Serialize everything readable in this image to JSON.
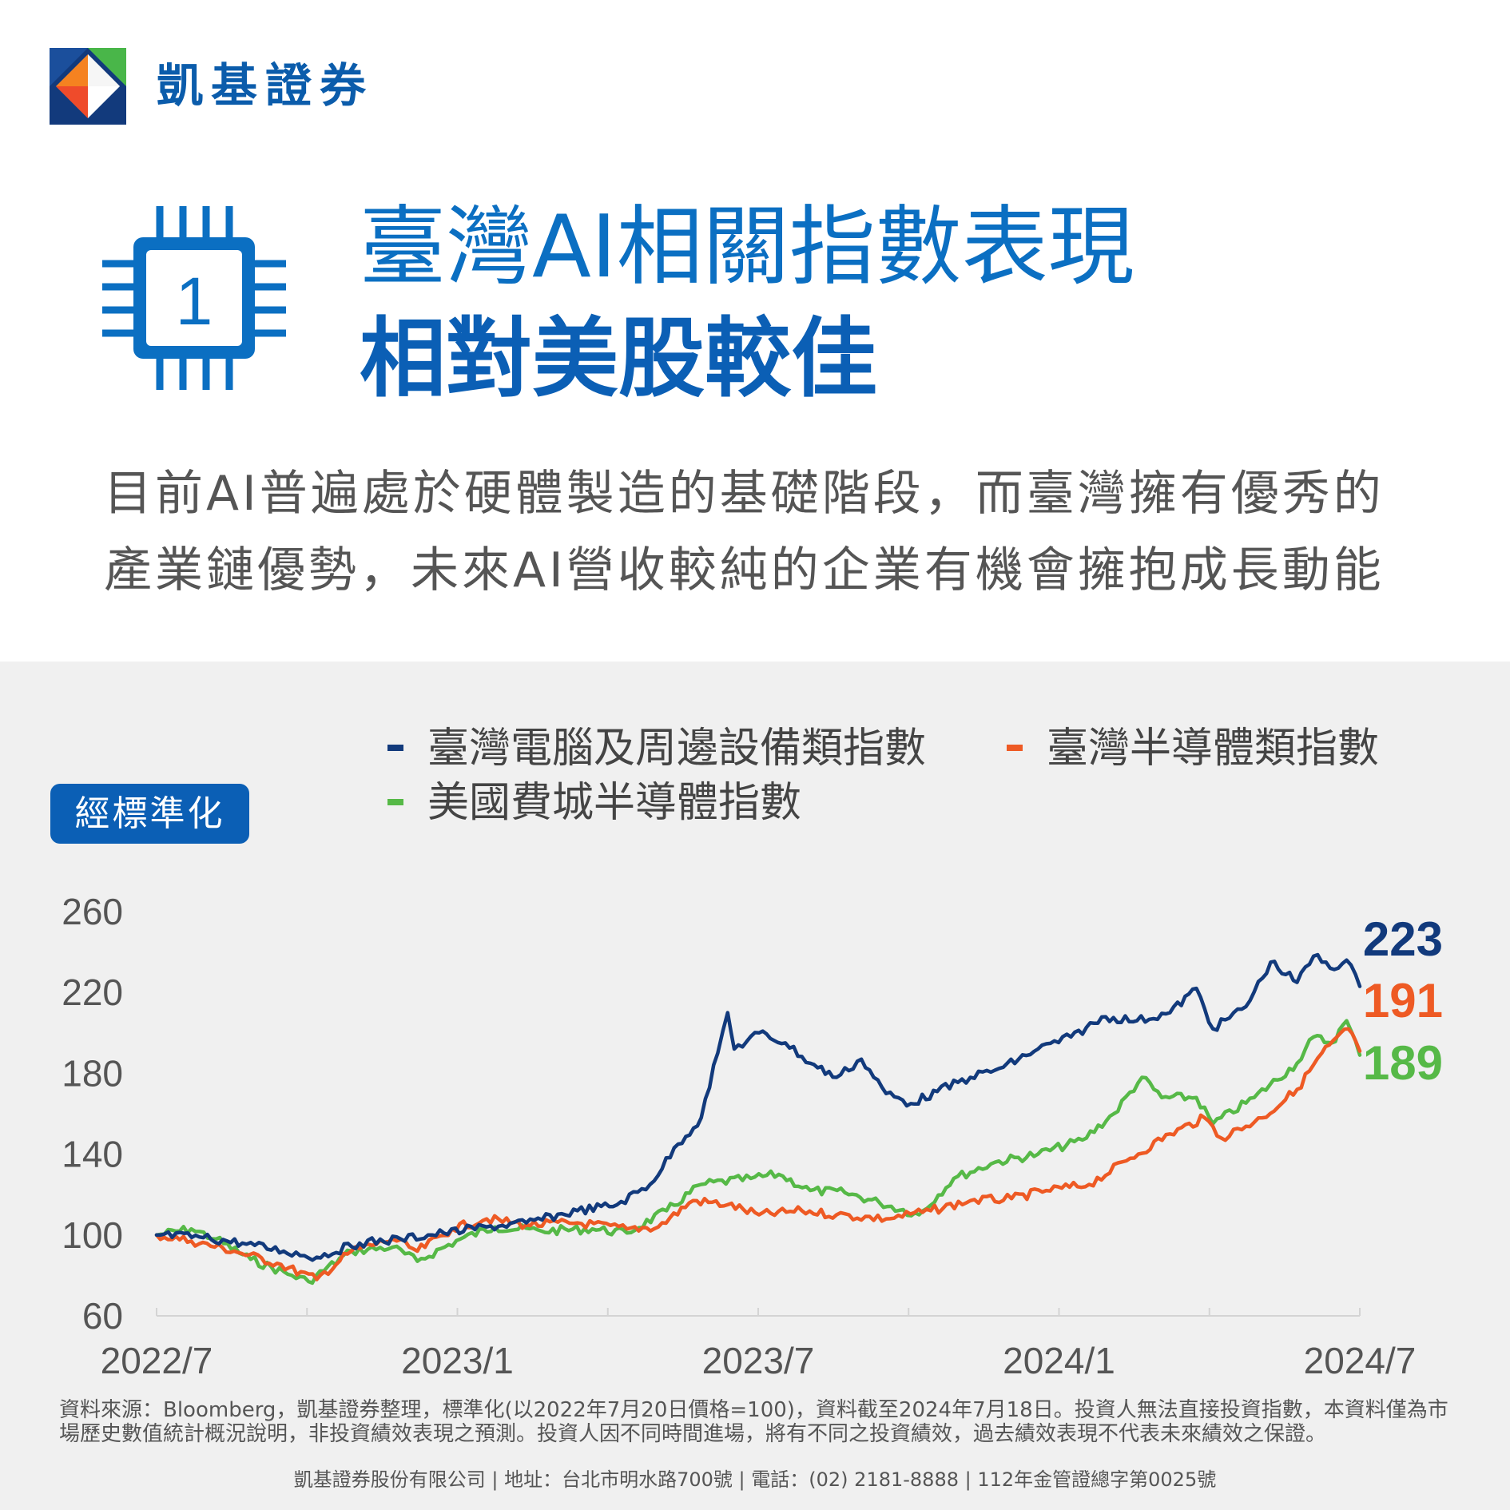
{
  "brand": {
    "name": "凱基證券"
  },
  "headline": {
    "line1": "臺灣AI相關指數表現",
    "line2": "相對美股較佳",
    "chip_number": "1"
  },
  "intro": {
    "line1": "目前AI普遍處於硬體製造的基礎階段，而臺灣擁有優秀的",
    "line2": "產業鏈優勢，未來AI營收較純的企業有機會擁抱成長動能"
  },
  "badge": {
    "label": "經標準化"
  },
  "colors": {
    "navy": "#123a7c",
    "orange": "#ee5a24",
    "green": "#56b947",
    "brand_blue": "#0b5fb5"
  },
  "chart_data": {
    "type": "line",
    "x_ticks": [
      "2022/7",
      "2023/1",
      "2023/7",
      "2024/1",
      "2024/7"
    ],
    "x_range": [
      "2022/7/20",
      "2024/7/18"
    ],
    "ylim": [
      60,
      260
    ],
    "y_ticks": [
      "60",
      "100",
      "140",
      "180",
      "220",
      "260"
    ],
    "grid": false,
    "legend_position": "top",
    "series": [
      {
        "name": "臺灣電腦及周邊設備類指數",
        "color": "#123a7c",
        "end_label": "223",
        "points": [
          [
            "2022/7/20",
            100
          ],
          [
            "2022/8/15",
            99
          ],
          [
            "2022/9/10",
            96
          ],
          [
            "2022/10/5",
            92
          ],
          [
            "2022/10/25",
            89
          ],
          [
            "2022/11/20",
            96
          ],
          [
            "2022/12/15",
            98
          ],
          [
            "2023/1/10",
            101
          ],
          [
            "2023/2/5",
            104
          ],
          [
            "2023/3/1",
            106
          ],
          [
            "2023/4/1",
            112
          ],
          [
            "2023/4/25",
            115
          ],
          [
            "2023/5/15",
            125
          ],
          [
            "2023/6/1",
            145
          ],
          [
            "2023/6/15",
            158
          ],
          [
            "2023/6/25",
            190
          ],
          [
            "2023/7/1",
            210
          ],
          [
            "2023/7/5",
            192
          ],
          [
            "2023/7/20",
            200
          ],
          [
            "2023/8/5",
            195
          ],
          [
            "2023/8/20",
            185
          ],
          [
            "2023/9/5",
            178
          ],
          [
            "2023/9/20",
            187
          ],
          [
            "2023/10/5",
            170
          ],
          [
            "2023/10/20",
            165
          ],
          [
            "2023/11/5",
            171
          ],
          [
            "2023/11/25",
            178
          ],
          [
            "2023/12/15",
            183
          ],
          [
            "2024/1/5",
            192
          ],
          [
            "2024/1/25",
            198
          ],
          [
            "2024/2/15",
            208
          ],
          [
            "2024/3/5",
            206
          ],
          [
            "2024/3/25",
            210
          ],
          [
            "2024/4/10",
            222
          ],
          [
            "2024/4/20",
            202
          ],
          [
            "2024/5/10",
            213
          ],
          [
            "2024/5/25",
            235
          ],
          [
            "2024/6/10",
            225
          ],
          [
            "2024/6/20",
            238
          ],
          [
            "2024/7/5",
            232
          ],
          [
            "2024/7/10",
            236
          ],
          [
            "2024/7/18",
            223
          ]
        ]
      },
      {
        "name": "臺灣半導體類指數",
        "color": "#ee5a24",
        "end_label": "191",
        "points": [
          [
            "2022/7/20",
            100
          ],
          [
            "2022/8/10",
            97
          ],
          [
            "2022/9/5",
            92
          ],
          [
            "2022/10/1",
            86
          ],
          [
            "2022/10/25",
            78
          ],
          [
            "2022/11/15",
            92
          ],
          [
            "2022/12/10",
            98
          ],
          [
            "2022/12/25",
            92
          ],
          [
            "2023/1/15",
            103
          ],
          [
            "2023/2/5",
            108
          ],
          [
            "2023/3/1",
            105
          ],
          [
            "2023/4/1",
            106
          ],
          [
            "2023/5/1",
            103
          ],
          [
            "2023/5/20",
            104
          ],
          [
            "2023/6/10",
            117
          ],
          [
            "2023/7/1",
            115
          ],
          [
            "2023/7/20",
            110
          ],
          [
            "2023/8/15",
            112
          ],
          [
            "2023/9/5",
            110
          ],
          [
            "2023/10/5",
            108
          ],
          [
            "2023/11/1",
            112
          ],
          [
            "2023/11/25",
            117
          ],
          [
            "2023/12/20",
            118
          ],
          [
            "2024/1/10",
            122
          ],
          [
            "2024/2/5",
            125
          ],
          [
            "2024/3/1",
            138
          ],
          [
            "2024/3/25",
            150
          ],
          [
            "2024/4/15",
            158
          ],
          [
            "2024/4/25",
            148
          ],
          [
            "2024/5/20",
            158
          ],
          [
            "2024/6/10",
            172
          ],
          [
            "2024/6/25",
            190
          ],
          [
            "2024/7/11",
            202
          ],
          [
            "2024/7/18",
            191
          ]
        ]
      },
      {
        "name": "美國費城半導體指數",
        "color": "#56b947",
        "end_label": "189",
        "points": [
          [
            "2022/7/20",
            100
          ],
          [
            "2022/8/10",
            103
          ],
          [
            "2022/8/25",
            98
          ],
          [
            "2022/9/15",
            88
          ],
          [
            "2022/10/10",
            80
          ],
          [
            "2022/10/20",
            77
          ],
          [
            "2022/11/15",
            92
          ],
          [
            "2022/12/10",
            94
          ],
          [
            "2022/12/25",
            87
          ],
          [
            "2023/1/20",
            98
          ],
          [
            "2023/2/10",
            104
          ],
          [
            "2023/3/10",
            102
          ],
          [
            "2023/4/10",
            103
          ],
          [
            "2023/5/1",
            101
          ],
          [
            "2023/5/25",
            112
          ],
          [
            "2023/6/15",
            125
          ],
          [
            "2023/7/15",
            128
          ],
          [
            "2023/8/1",
            130
          ],
          [
            "2023/8/20",
            122
          ],
          [
            "2023/9/10",
            121
          ],
          [
            "2023/10/1",
            116
          ],
          [
            "2023/10/25",
            110
          ],
          [
            "2023/11/15",
            128
          ],
          [
            "2023/12/10",
            136
          ],
          [
            "2024/1/5",
            140
          ],
          [
            "2024/2/1",
            147
          ],
          [
            "2024/2/20",
            160
          ],
          [
            "2024/3/8",
            178
          ],
          [
            "2024/3/20",
            168
          ],
          [
            "2024/4/10",
            168
          ],
          [
            "2024/4/20",
            155
          ],
          [
            "2024/5/15",
            168
          ],
          [
            "2024/6/10",
            185
          ],
          [
            "2024/6/20",
            198
          ],
          [
            "2024/7/1",
            195
          ],
          [
            "2024/7/10",
            206
          ],
          [
            "2024/7/18",
            189
          ]
        ]
      }
    ]
  },
  "notes": {
    "line1": "資料來源：Bloomberg，凱基證券整理，標準化(以2022年7月20日價格=100)，資料截至2024年7月18日。投資人無法直接投資指數，本資料僅為市",
    "line2": "場歷史數值統計概況說明，非投資績效表現之預測。投資人因不同時間進場，將有不同之投資績效，過去績效表現不代表未來績效之保證。"
  },
  "footer": {
    "text": "凱基證券股份有限公司 | 地址：台北市明水路700號 | 電話：(02) 2181-8888 | 112年金管證總字第0025號"
  }
}
